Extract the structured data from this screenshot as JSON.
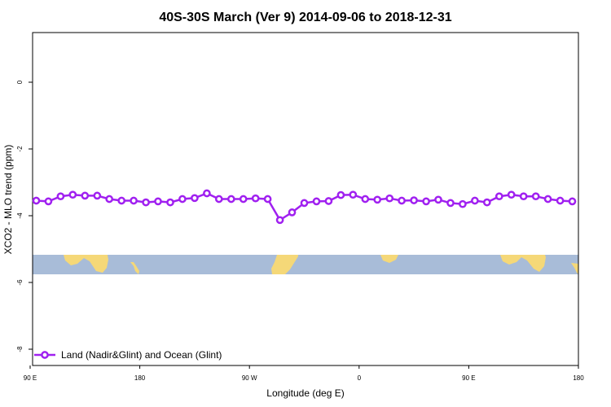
{
  "chart_data": {
    "type": "line",
    "title": "40S-30S March (Ver 9)   2014-09-06 to 2018-12-31",
    "xlabel": "Longitude (deg E)",
    "ylabel": "XCO2 - MLO trend (ppm)",
    "xlim": [
      90,
      540
    ],
    "ylim": [
      -8.5,
      1.5
    ],
    "xticks": [
      {
        "value": 90,
        "label": "90 E"
      },
      {
        "value": 180,
        "label": "180"
      },
      {
        "value": 270,
        "label": "90 W"
      },
      {
        "value": 360,
        "label": "0"
      },
      {
        "value": 450,
        "label": "90 E"
      },
      {
        "value": 540,
        "label": "180"
      }
    ],
    "yticks": [
      {
        "value": 0,
        "label": "0"
      },
      {
        "value": -2,
        "label": "-2"
      },
      {
        "value": -4,
        "label": "-4"
      },
      {
        "value": -6,
        "label": "-6"
      },
      {
        "value": -8,
        "label": "-8"
      }
    ],
    "grid": false,
    "legend_position": "bottom-left",
    "colors": {
      "series": "#a020f0",
      "ocean": "#a8bcd8",
      "land": "#f5d878"
    },
    "series": [
      {
        "name": "Land (Nadir&Glint) and Ocean (Glint)",
        "x": [
          95,
          105,
          115,
          125,
          135,
          145,
          155,
          165,
          175,
          185,
          195,
          205,
          215,
          225,
          235,
          245,
          255,
          265,
          275,
          285,
          295,
          305,
          315,
          325,
          335,
          345,
          355,
          365,
          375,
          385,
          395,
          405,
          415,
          425,
          435,
          445,
          455,
          465,
          475,
          485,
          495,
          505,
          515,
          525,
          535
        ],
        "y": [
          -3.55,
          -3.57,
          -3.42,
          -3.37,
          -3.4,
          -3.4,
          -3.5,
          -3.55,
          -3.55,
          -3.6,
          -3.57,
          -3.6,
          -3.5,
          -3.47,
          -3.33,
          -3.5,
          -3.5,
          -3.5,
          -3.48,
          -3.5,
          -4.13,
          -3.9,
          -3.62,
          -3.57,
          -3.56,
          -3.38,
          -3.37,
          -3.5,
          -3.52,
          -3.48,
          -3.55,
          -3.54,
          -3.57,
          -3.52,
          -3.62,
          -3.65,
          -3.55,
          -3.6,
          -3.42,
          -3.37,
          -3.42,
          -3.42,
          -3.5,
          -3.55,
          -3.57
        ]
      }
    ],
    "map_strip": {
      "ylim": [
        -5.8,
        -5.2
      ]
    }
  }
}
